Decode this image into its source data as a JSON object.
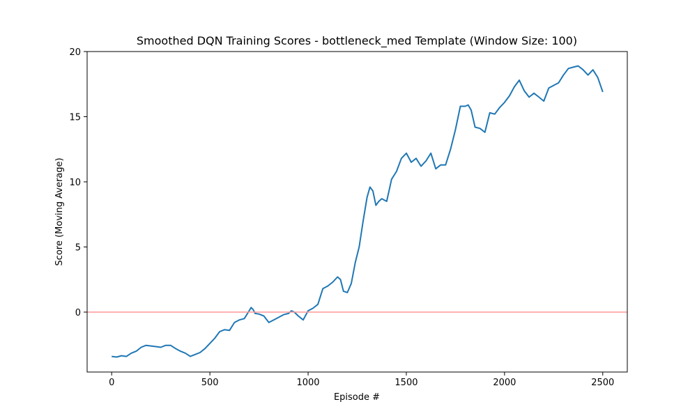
{
  "chart_data": {
    "type": "line",
    "title": "Smoothed DQN Training Scores - bottleneck_med Template (Window Size: 100)",
    "xlabel": "Episode #",
    "ylabel": "Score (Moving Average)",
    "xlim": [
      -125,
      2625
    ],
    "ylim": [
      -4.6,
      20
    ],
    "x_ticks": [
      0,
      500,
      1000,
      1500,
      2000,
      2500
    ],
    "y_ticks": [
      0,
      5,
      10,
      15,
      20
    ],
    "grid": false,
    "legend": "none",
    "colors": {
      "series": "#1f77b4",
      "reference_line": "#ff9999",
      "axes": "#000000"
    },
    "reference_line": {
      "orientation": "horizontal",
      "y": 0
    },
    "series": [
      {
        "x": [
          0,
          25,
          50,
          75,
          100,
          125,
          150,
          175,
          200,
          225,
          250,
          275,
          300,
          325,
          350,
          375,
          400,
          425,
          450,
          475,
          500,
          525,
          550,
          575,
          600,
          625,
          650,
          675,
          700,
          710,
          720,
          730,
          750,
          775,
          800,
          825,
          850,
          875,
          900,
          915,
          930,
          950,
          975,
          1000,
          1025,
          1050,
          1075,
          1100,
          1125,
          1150,
          1165,
          1180,
          1200,
          1220,
          1240,
          1260,
          1280,
          1300,
          1315,
          1330,
          1345,
          1360,
          1375,
          1400,
          1425,
          1450,
          1475,
          1500,
          1525,
          1550,
          1575,
          1600,
          1625,
          1650,
          1675,
          1700,
          1725,
          1750,
          1775,
          1800,
          1815,
          1830,
          1850,
          1875,
          1900,
          1925,
          1950,
          1975,
          2000,
          2025,
          2050,
          2075,
          2100,
          2125,
          2150,
          2175,
          2200,
          2225,
          2250,
          2275,
          2300,
          2325,
          2350,
          2375,
          2400,
          2425,
          2450,
          2475,
          2500
        ],
        "y": [
          -3.4,
          -3.45,
          -3.35,
          -3.4,
          -3.15,
          -3.0,
          -2.7,
          -2.55,
          -2.6,
          -2.65,
          -2.7,
          -2.55,
          -2.55,
          -2.8,
          -3.0,
          -3.15,
          -3.4,
          -3.25,
          -3.1,
          -2.8,
          -2.4,
          -2.0,
          -1.5,
          -1.35,
          -1.4,
          -0.8,
          -0.6,
          -0.5,
          0.1,
          0.35,
          0.2,
          -0.1,
          -0.15,
          -0.3,
          -0.8,
          -0.6,
          -0.4,
          -0.2,
          -0.1,
          0.1,
          0.0,
          -0.3,
          -0.6,
          0.1,
          0.3,
          0.6,
          1.8,
          2.0,
          2.3,
          2.7,
          2.5,
          1.6,
          1.5,
          2.2,
          3.8,
          5.0,
          7.0,
          8.8,
          9.6,
          9.3,
          8.2,
          8.5,
          8.7,
          8.5,
          10.2,
          10.8,
          11.8,
          12.2,
          11.5,
          11.8,
          11.2,
          11.6,
          12.2,
          11.0,
          11.3,
          11.3,
          12.5,
          14.0,
          15.8,
          15.8,
          15.9,
          15.5,
          14.2,
          14.1,
          13.8,
          15.3,
          15.2,
          15.7,
          16.1,
          16.6,
          17.3,
          17.8,
          17.0,
          16.5,
          16.8,
          16.5,
          16.2,
          17.2,
          17.4,
          17.6,
          18.2,
          18.7,
          18.8,
          18.9,
          18.6,
          18.2,
          18.6,
          18.0,
          16.9
        ]
      }
    ]
  }
}
